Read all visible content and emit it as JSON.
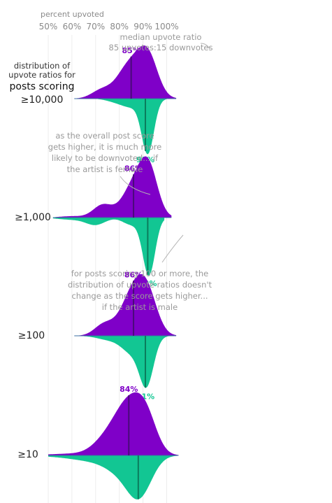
{
  "chart_data": {
    "type": "violin",
    "title": "",
    "xlabel": "percent upvoted",
    "x_ticks": [
      "50%",
      "60%",
      "70%",
      "80%",
      "90%",
      "100%"
    ],
    "xlim": [
      50,
      105
    ],
    "y_header": [
      "distribution of",
      "upvote ratios for",
      "posts scoring"
    ],
    "series": [
      {
        "name": "female",
        "color": "#7f00c8",
        "side": "top"
      },
      {
        "name": "male",
        "color": "#12c693",
        "side": "bottom"
      }
    ],
    "groups": [
      {
        "label": "≥10,000",
        "female_median": 85,
        "male_median": 91,
        "female_label": "85%",
        "male_label": "91%",
        "female_range": [
          61,
          104
        ],
        "male_range": [
          71,
          100
        ]
      },
      {
        "label": "≥1,000",
        "female_median": 86,
        "male_median": 92,
        "female_label": "86%",
        "male_label": "92%",
        "female_range": [
          53,
          102
        ],
        "male_range": [
          52,
          99
        ]
      },
      {
        "label": "≥100",
        "female_median": 86,
        "male_median": 91,
        "female_label": "86%",
        "male_label": "91%",
        "female_range": [
          61,
          104
        ],
        "male_range": [
          61,
          103
        ]
      },
      {
        "label": "≥10",
        "female_median": 84,
        "male_median": 88,
        "female_label": "84%",
        "male_label": "88%",
        "female_range": [
          50,
          105
        ],
        "male_range": [
          50,
          105
        ]
      }
    ],
    "annotations": [
      {
        "lines": [
          "median upvote ratio",
          "85 upvotes:15 downvotes"
        ]
      },
      {
        "lines": [
          "as the overall post score",
          "gets higher, it is much more",
          "likely to be downvoted... if",
          "the artist is female"
        ]
      },
      {
        "lines": [
          "for posts scoring 100 or more, the",
          "distribution of upvote ratios doesn't",
          "change as the score gets higher...",
          "if the artist is male"
        ]
      }
    ]
  }
}
